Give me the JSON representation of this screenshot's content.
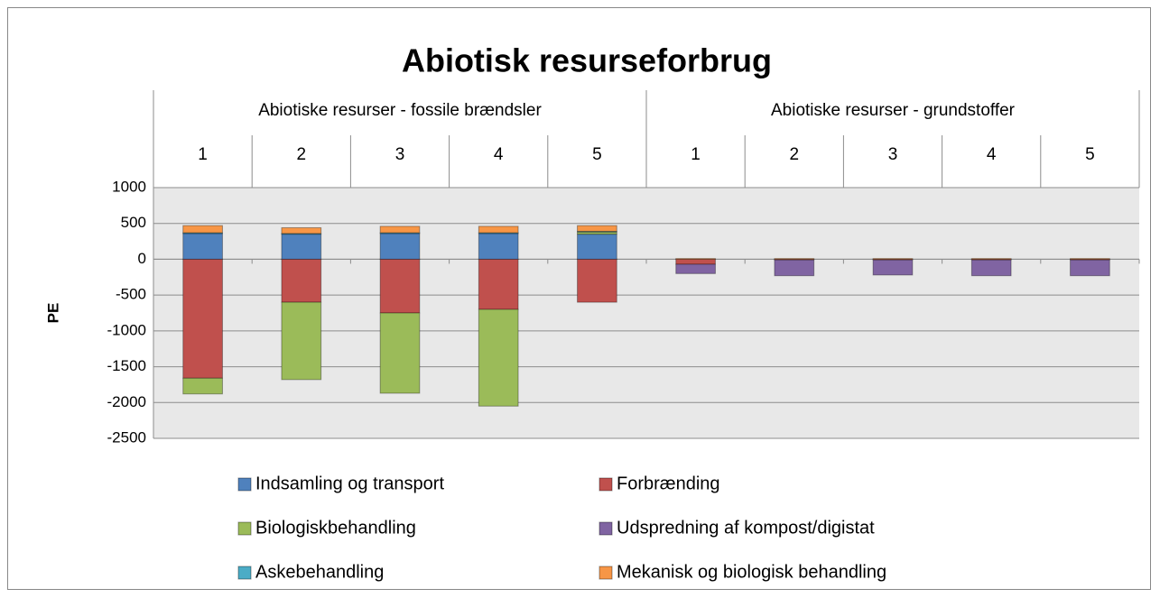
{
  "chart_data": {
    "type": "stacked_bar",
    "title": "Abiotisk resurseforbrug",
    "y_label": "PE",
    "groups": [
      {
        "name": "Abiotiske resurser - fossile brændsler",
        "categories": [
          "1",
          "2",
          "3",
          "4",
          "5"
        ]
      },
      {
        "name": "Abiotiske resurser - grundstoffer",
        "categories": [
          "1",
          "2",
          "3",
          "4",
          "5"
        ]
      }
    ],
    "series": [
      {
        "name": "Indsamling og transport",
        "color": "#4f81bd",
        "values": [
          360,
          350,
          360,
          360,
          350,
          0,
          0,
          0,
          0,
          0
        ]
      },
      {
        "name": "Forbrænding",
        "color": "#c0504d",
        "values": [
          -1660,
          -600,
          -750,
          -700,
          -600,
          -70,
          -10,
          -10,
          -10,
          -10
        ]
      },
      {
        "name": "Biologiskbehandling",
        "color": "#9bbb59",
        "values": [
          -220,
          -1080,
          -1120,
          -1350,
          30,
          0,
          0,
          0,
          0,
          0
        ]
      },
      {
        "name": "Udspredning af kompost/digistat",
        "color": "#8064a2",
        "values": [
          0,
          0,
          0,
          0,
          0,
          -130,
          -220,
          -210,
          -220,
          -220
        ]
      },
      {
        "name": "Askebehandling",
        "color": "#4bacc6",
        "values": [
          10,
          10,
          10,
          10,
          10,
          0,
          0,
          0,
          0,
          0
        ]
      },
      {
        "name": "Mekanisk og biologisk behandling",
        "color": "#f79646",
        "values": [
          100,
          80,
          90,
          90,
          80,
          10,
          10,
          10,
          10,
          10
        ]
      }
    ],
    "ylim": [
      -2500,
      1000
    ],
    "yticks": [
      1000,
      500,
      0,
      -500,
      -1000,
      -1500,
      -2000,
      -2500
    ],
    "grid": true,
    "legend_position": "bottom"
  }
}
